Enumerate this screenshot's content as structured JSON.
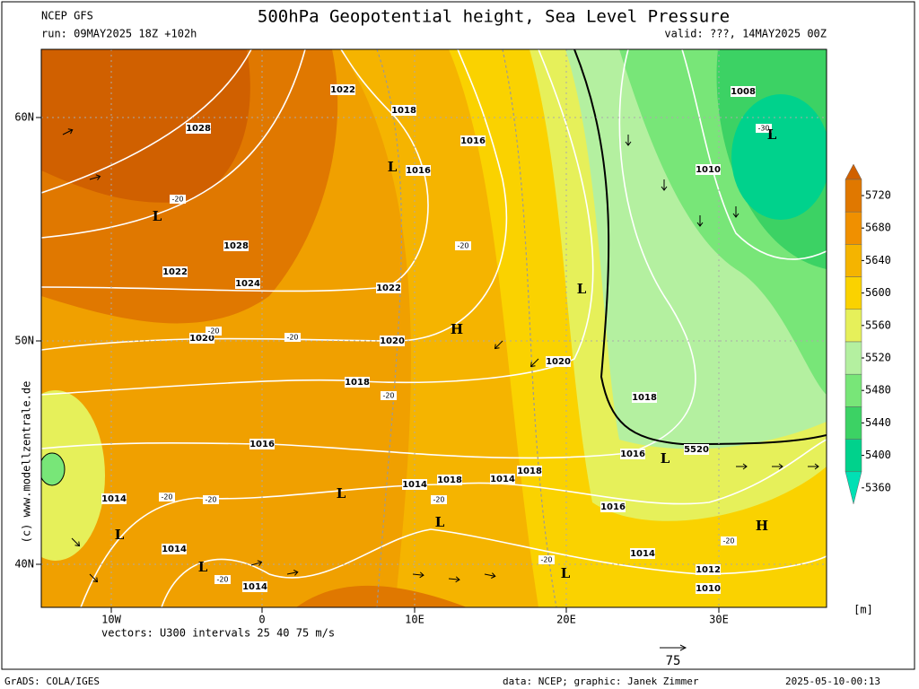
{
  "header": {
    "model": "NCEP GFS",
    "run": "run: 09MAY2025 18Z +102h",
    "title": "500hPa Geopotential height, Sea Level Pressure",
    "valid": "valid: ???, 14MAY2025 00Z"
  },
  "map": {
    "lat_labels": [
      "60N",
      "50N",
      "40N"
    ],
    "lon_labels": [
      "10W",
      "0",
      "10E",
      "20E",
      "30E"
    ],
    "isobar_labels": [
      1022,
      1018,
      1016,
      1008,
      1028,
      1016,
      1010,
      1028,
      1022,
      1024,
      1022,
      1020,
      1020,
      1020,
      1018,
      1018,
      1016,
      1016,
      5520,
      1018,
      1018,
      1014,
      1014,
      1014,
      1016,
      1014,
      1014,
      1012,
      1010,
      1014
    ],
    "wind_labels": [
      -20,
      -20,
      -20,
      -20,
      -20,
      -20,
      -20,
      -20,
      -20,
      -20,
      -20,
      -30
    ],
    "pressure_centers": [
      "L",
      "L",
      "L",
      "L",
      "H",
      "L",
      "L",
      "L",
      "L",
      "L",
      "H",
      "L"
    ],
    "watermark": "(c)  www.modellzentrale.de"
  },
  "colorbar": {
    "ticks": [
      5720,
      5680,
      5640,
      5600,
      5560,
      5520,
      5480,
      5440,
      5400,
      5360
    ],
    "unit": "[m]"
  },
  "footer": {
    "vectors": "vectors: U300 intervals 25 40 75 m/s",
    "ref_vector": "75",
    "software": "GrADS: COLA/IGES",
    "credits": "data: NCEP; graphic: Janek Zimmer",
    "timestamp": "2025-05-10-00:13"
  }
}
